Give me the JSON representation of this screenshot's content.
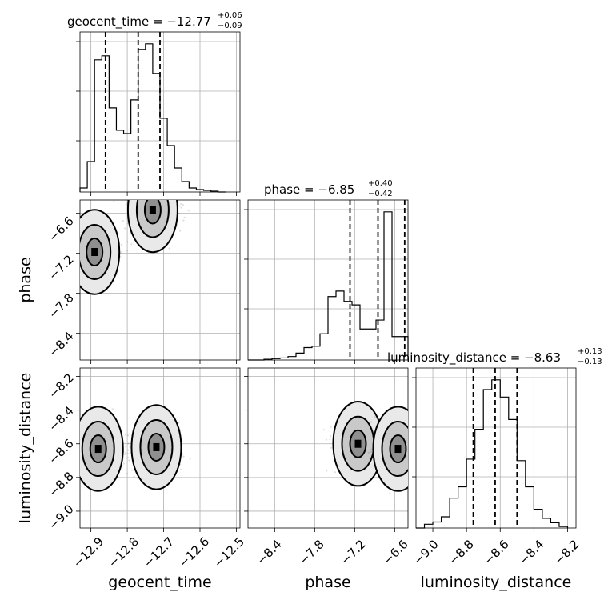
{
  "chart_data": [
    {
      "type": "histogram",
      "parameter": "geocent_time",
      "title": {
        "prefix": "geocent_time = ",
        "value": "−12.77",
        "plus": "+0.06",
        "minus": "−0.09"
      },
      "xlim": [
        -12.93,
        -12.49
      ],
      "bin_edges": [
        -12.93,
        -12.91,
        -12.89,
        -12.87,
        -12.85,
        -12.83,
        -12.81,
        -12.79,
        -12.77,
        -12.75,
        -12.73,
        -12.71,
        -12.69,
        -12.67,
        -12.65,
        -12.63,
        -12.61,
        -12.59,
        -12.57,
        -12.55,
        -12.53
      ],
      "counts": [
        5,
        38,
        165,
        170,
        105,
        77,
        73,
        115,
        178,
        185,
        148,
        92,
        58,
        30,
        13,
        5,
        3,
        2,
        1,
        0
      ],
      "quantiles": [
        -12.86,
        -12.77,
        -12.71
      ]
    },
    {
      "type": "histogram",
      "parameter": "phase",
      "title": {
        "prefix": "phase = ",
        "value": "−6.85",
        "plus": "+0.40",
        "minus": "−0.42"
      },
      "xlim": [
        -8.8,
        -6.4
      ],
      "bin_edges": [
        -8.8,
        -8.68,
        -8.56,
        -8.44,
        -8.32,
        -8.2,
        -8.08,
        -7.96,
        -7.84,
        -7.72,
        -7.6,
        -7.48,
        -7.36,
        -7.24,
        -7.12,
        -7.0,
        -6.88,
        -6.76,
        -6.64,
        -6.52,
        -6.4
      ],
      "counts": [
        0,
        0,
        1,
        2,
        3,
        5,
        10,
        18,
        20,
        38,
        92,
        100,
        85,
        80,
        45,
        45,
        58,
        215,
        34,
        34
      ],
      "quantiles": [
        -7.27,
        -6.85,
        -6.45
      ]
    },
    {
      "type": "histogram",
      "parameter": "luminosity_distance",
      "title": {
        "prefix": "luminosity_distance = ",
        "value": "−8.63",
        "plus": "+0.13",
        "minus": "−0.13"
      },
      "xlim": [
        -9.1,
        -8.15
      ],
      "bin_edges": [
        -9.1,
        -9.05,
        -9.0,
        -8.95,
        -8.9,
        -8.85,
        -8.8,
        -8.75,
        -8.7,
        -8.65,
        -8.6,
        -8.55,
        -8.5,
        -8.45,
        -8.4,
        -8.35,
        -8.3,
        -8.25,
        -8.2
      ],
      "counts": [
        0,
        5,
        8,
        15,
        40,
        55,
        92,
        132,
        185,
        198,
        175,
        145,
        90,
        55,
        25,
        13,
        7,
        2
      ],
      "quantiles": [
        -8.76,
        -8.63,
        -8.5
      ]
    },
    {
      "type": "scatter",
      "x": "geocent_time",
      "y": "phase",
      "xlim": [
        -12.93,
        -12.49
      ],
      "ylim": [
        -8.8,
        -6.4
      ],
      "ylabel": "phase",
      "xticks": [
        "−12.9",
        "−12.8",
        "−12.7",
        "−12.6",
        "−12.5"
      ],
      "yticks": [
        "−6.6",
        "−7.2",
        "−7.8",
        "−8.4"
      ],
      "modes": [
        {
          "x": -12.73,
          "y": -6.55,
          "weight": 1.0
        },
        {
          "x": -12.89,
          "y": -7.18,
          "weight": 0.85
        }
      ]
    },
    {
      "type": "scatter",
      "x": "geocent_time",
      "y": "luminosity_distance",
      "xlim": [
        -12.93,
        -12.49
      ],
      "ylim": [
        -9.1,
        -8.15
      ],
      "xlabel": "geocent_time",
      "ylabel": "luminosity_distance",
      "xticks": [
        "−12.9",
        "−12.8",
        "−12.7",
        "−12.6",
        "−12.5"
      ],
      "yticks": [
        "−8.2",
        "−8.4",
        "−8.6",
        "−8.8",
        "−9.0"
      ],
      "modes": [
        {
          "x": -12.88,
          "y": -8.63,
          "weight": 0.9
        },
        {
          "x": -12.72,
          "y": -8.62,
          "weight": 1.0
        }
      ]
    },
    {
      "type": "scatter",
      "x": "phase",
      "y": "luminosity_distance",
      "xlim": [
        -8.8,
        -6.4
      ],
      "ylim": [
        -9.1,
        -8.15
      ],
      "xlabel": "phase",
      "xticks": [
        "−8.4",
        "−7.8",
        "−7.2",
        "−6.6"
      ],
      "modes": [
        {
          "x": -7.15,
          "y": -8.6,
          "weight": 0.85
        },
        {
          "x": -6.55,
          "y": -8.63,
          "weight": 1.0
        }
      ]
    },
    {
      "type": "axis",
      "parameter": "luminosity_distance",
      "xlabel": "luminosity_distance",
      "xticks": [
        "−9.0",
        "−8.8",
        "−8.6",
        "−8.4",
        "−8.2"
      ]
    }
  ]
}
